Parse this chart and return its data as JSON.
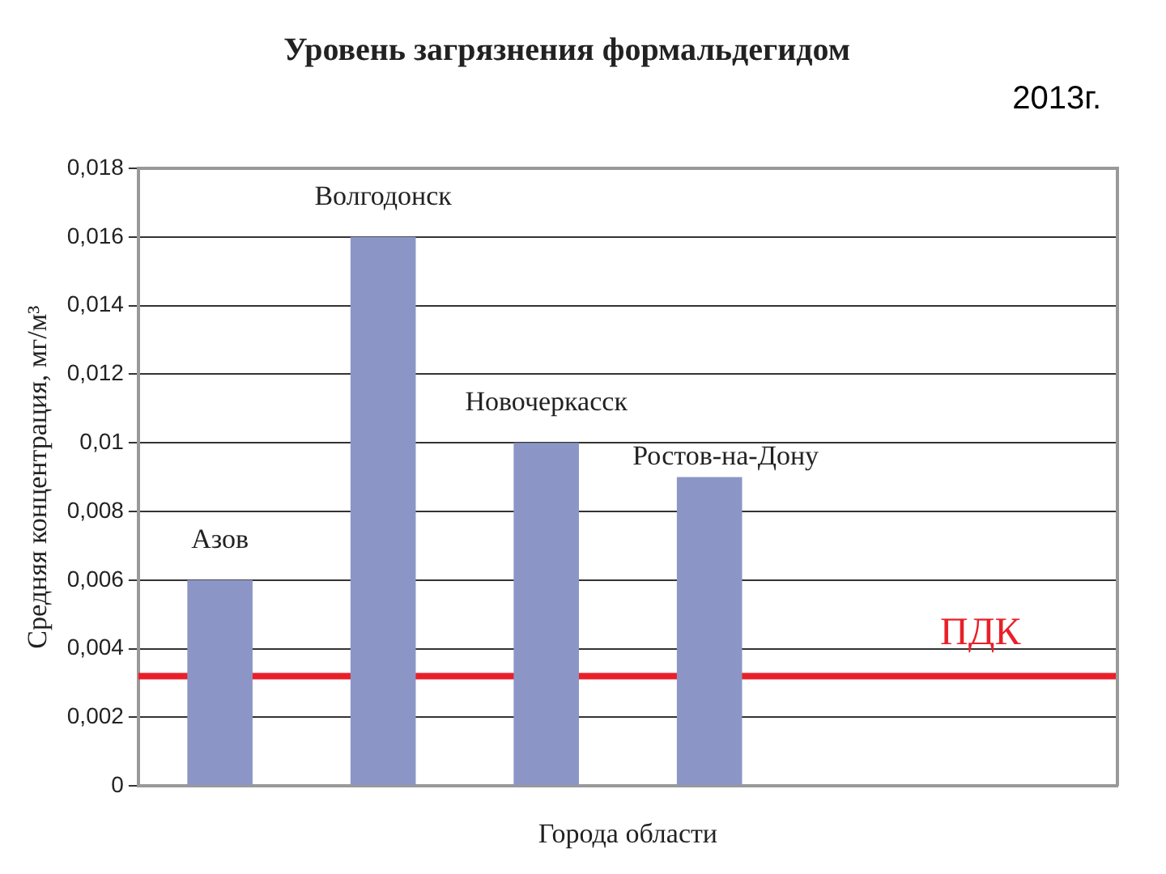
{
  "chart_data": {
    "type": "bar",
    "title": "Уровень загрязнения формальдегидом",
    "xlabel": "Города области",
    "ylabel": "Средняя концентрация, мг/м³",
    "annotations": [
      "2013г."
    ],
    "categories": [
      "Азов",
      "Волгодонск",
      "Новочеркасск",
      "Ростов-на-Дону",
      null,
      null
    ],
    "values": [
      0.006,
      0.016,
      0.01,
      0.009,
      null,
      null
    ],
    "color": "#8c96c6",
    "ylim": [
      0,
      0.018
    ],
    "yticks": [
      0,
      {
        "value": 0.002,
        "label": "0,002"
      },
      {
        "value": 0.004,
        "label": "0,004"
      },
      {
        "value": 0.006,
        "label": "0,006"
      },
      {
        "value": 0.008,
        "label": "0,008"
      },
      {
        "value": 0.01,
        "label": "0,01"
      },
      {
        "value": 0.012,
        "label": "0,012"
      },
      {
        "value": 0.014,
        "label": "0,014"
      },
      {
        "value": 0.016,
        "label": "0,016"
      },
      {
        "value": 0.018,
        "label": "0,018"
      }
    ],
    "ref_lines": [
      {
        "axis": "y",
        "value": 0.0032,
        "label": "ПДК",
        "color": "#e8202a"
      }
    ],
    "grid": "y",
    "legend": false,
    "tick_labels": "y"
  }
}
